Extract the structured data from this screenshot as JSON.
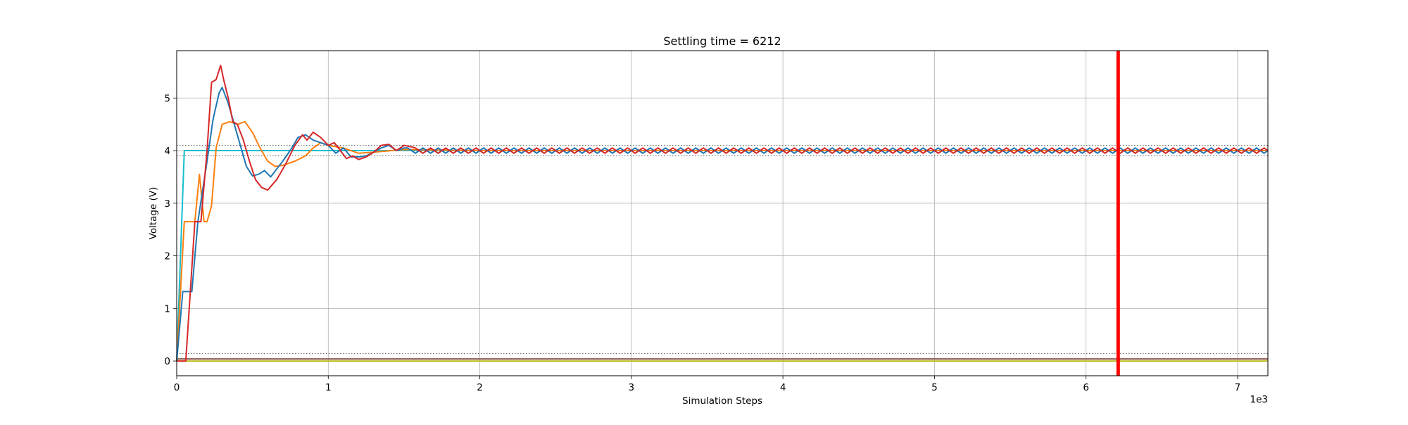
{
  "chart_data": {
    "type": "line",
    "title": "Settling time = 6212",
    "xlabel": "Simulation Steps",
    "ylabel": "Voltage (V)",
    "x_offset_text": "1e3",
    "xlim": [
      0,
      7200
    ],
    "ylim": [
      -0.28,
      5.9
    ],
    "x_ticks": [
      0,
      1000,
      2000,
      3000,
      4000,
      5000,
      6000,
      7000
    ],
    "x_tick_labels": [
      "0",
      "1",
      "2",
      "3",
      "4",
      "5",
      "6",
      "7"
    ],
    "y_ticks": [
      0,
      1,
      2,
      3,
      4,
      5
    ],
    "y_tick_labels": [
      "0",
      "1",
      "2",
      "3",
      "4",
      "5"
    ],
    "grid": true,
    "settling_time": 6212,
    "reference_lines": [
      {
        "y": 4.1,
        "style": "dotted",
        "color": "#555555"
      },
      {
        "y": 3.9,
        "style": "dotted",
        "color": "#555555"
      },
      {
        "y": 0.14,
        "style": "dotted",
        "color": "#555555"
      }
    ],
    "series": [
      {
        "color": "#17becf",
        "x": [
          0,
          50,
          7200
        ],
        "y": [
          0,
          4.0,
          4.0
        ]
      },
      {
        "color": "#8c564b",
        "x": [
          0,
          7200
        ],
        "y": [
          0.04,
          0.04
        ]
      },
      {
        "color": "#bcbd22",
        "x": [
          0,
          7200
        ],
        "y": [
          0.0,
          0.0
        ]
      },
      {
        "color": "#ff7f0e",
        "x": [
          0,
          50,
          120,
          150,
          180,
          200,
          230,
          260,
          300,
          350,
          400,
          450,
          500,
          550,
          600,
          650,
          700,
          780,
          850,
          900,
          950,
          1000,
          1100,
          1200,
          1300,
          1500,
          2000,
          7200
        ],
        "y": [
          0,
          2.65,
          2.65,
          3.55,
          2.65,
          2.65,
          2.95,
          4.05,
          4.5,
          4.55,
          4.5,
          4.55,
          4.35,
          4.05,
          3.8,
          3.7,
          3.72,
          3.8,
          3.9,
          4.05,
          4.15,
          4.1,
          4.05,
          3.95,
          3.97,
          4.02,
          4.0,
          4.0
        ]
      },
      {
        "color": "#1f77b4",
        "x": [
          0,
          40,
          100,
          140,
          200,
          240,
          280,
          300,
          340,
          380,
          420,
          460,
          500,
          540,
          580,
          620,
          660,
          700,
          760,
          800,
          850,
          900,
          950,
          1000,
          1050,
          1100,
          1150,
          1200,
          1250,
          1300,
          1350,
          1400,
          1450,
          1500
        ],
        "y": [
          0,
          1.32,
          1.32,
          2.65,
          3.8,
          4.6,
          5.1,
          5.2,
          4.9,
          4.5,
          4.1,
          3.7,
          3.52,
          3.55,
          3.62,
          3.5,
          3.65,
          3.8,
          4.05,
          4.25,
          4.3,
          4.2,
          4.15,
          4.1,
          3.95,
          4.05,
          3.88,
          3.88,
          3.9,
          3.97,
          4.05,
          4.1,
          4.0,
          4.05
        ]
      },
      {
        "color": "#d62728",
        "x": [
          0,
          60,
          120,
          160,
          200,
          230,
          260,
          290,
          310,
          340,
          370,
          400,
          440,
          480,
          520,
          560,
          600,
          660,
          720,
          780,
          830,
          860,
          900,
          950,
          1000,
          1040,
          1080,
          1120,
          1160,
          1200,
          1250,
          1300,
          1350,
          1400,
          1450,
          1500,
          1550
        ],
        "y": [
          0,
          0,
          2.65,
          2.65,
          4.0,
          5.3,
          5.35,
          5.62,
          5.35,
          5.0,
          4.55,
          4.5,
          4.2,
          3.8,
          3.45,
          3.3,
          3.25,
          3.45,
          3.75,
          4.1,
          4.3,
          4.2,
          4.35,
          4.25,
          4.1,
          4.15,
          4.0,
          3.85,
          3.9,
          3.83,
          3.88,
          3.97,
          4.1,
          4.12,
          4.0,
          4.1,
          4.07
        ]
      }
    ],
    "oscillation": {
      "x_start": 1500,
      "x_end": 7200,
      "period": 100,
      "center": 4.0,
      "amplitude": 0.05,
      "series_colors": [
        "#1f77b4",
        "#d62728"
      ]
    },
    "settling_marker": {
      "x": 6212,
      "color": "#ff0000"
    }
  }
}
